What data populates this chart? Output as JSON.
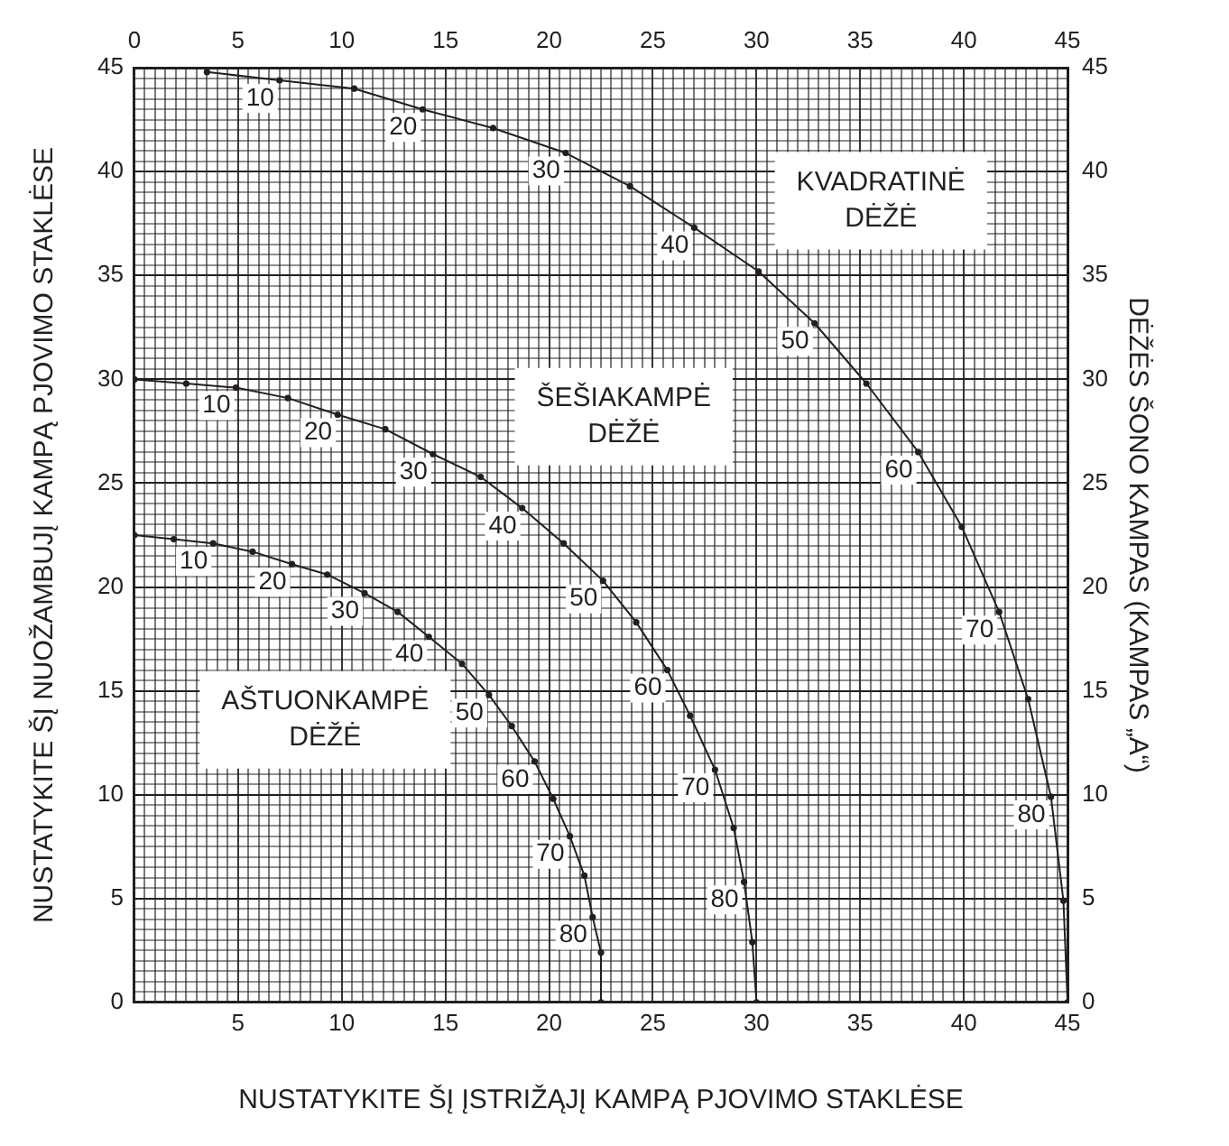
{
  "chart_data": {
    "type": "line",
    "xlabel": "NUSTATYKITE ŠĮ ĮSTRIŽĄJĮ KAMPĄ PJOVIMO STAKLĖSE",
    "ylabel": "NUSTATYKITE ŠĮ NUOŽAMBUJĮ KAMPĄ PJOVIMO STAKLĖSE",
    "y2label": "DĖŽĖS ŠONO KAMPAS (KAMPAS „A“)",
    "series": [
      {
        "name": "KVADRATINĖ DĖŽĖ",
        "color": "#231f20",
        "x": [
          3.5,
          7.0,
          10.6,
          13.9,
          17.3,
          20.8,
          23.9,
          27.0,
          30.1,
          32.8,
          35.3,
          37.8,
          39.9,
          41.7,
          43.1,
          44.2,
          44.8,
          45
        ],
        "values": [
          44.8,
          44.4,
          44.0,
          43.0,
          42.1,
          40.9,
          39.3,
          37.3,
          35.2,
          32.7,
          29.8,
          26.5,
          22.9,
          18.8,
          14.6,
          9.9,
          4.9,
          0
        ]
      },
      {
        "name": "ŠEŠIAKAMPĖ DĖŽĖ",
        "color": "#231f20",
        "x": [
          0,
          2.5,
          4.9,
          7.4,
          9.8,
          12.1,
          14.4,
          16.7,
          18.7,
          20.7,
          22.6,
          24.2,
          25.7,
          26.8,
          28.0,
          28.9,
          29.4,
          29.8,
          30
        ],
        "values": [
          30,
          29.8,
          29.6,
          29.1,
          28.3,
          27.6,
          26.4,
          25.3,
          23.8,
          22.1,
          20.3,
          18.3,
          16.0,
          13.8,
          11.2,
          8.4,
          5.8,
          2.9,
          0
        ]
      },
      {
        "name": "AŠTUONKAMPĖ DĖŽĖ",
        "color": "#231f20",
        "x": [
          0,
          1.9,
          3.8,
          5.7,
          7.6,
          9.3,
          11.1,
          12.7,
          14.2,
          15.8,
          17.1,
          18.2,
          19.3,
          20.2,
          21.0,
          21.7,
          22.1,
          22.5,
          22.5
        ],
        "values": [
          22.5,
          22.3,
          22.1,
          21.7,
          21.1,
          20.6,
          19.7,
          18.8,
          17.6,
          16.3,
          14.8,
          13.3,
          11.6,
          9.8,
          8.0,
          6.1,
          4.1,
          2.4,
          0
        ]
      }
    ],
    "annotations": [
      {
        "text": "10",
        "x": 7.0,
        "y": 44.4
      },
      {
        "text": "20",
        "x": 13.9,
        "y": 43.0
      },
      {
        "text": "30",
        "x": 20.8,
        "y": 40.9
      },
      {
        "text": "40",
        "x": 27.0,
        "y": 37.3
      },
      {
        "text": "50",
        "x": 32.8,
        "y": 32.7
      },
      {
        "text": "60",
        "x": 37.8,
        "y": 26.5
      },
      {
        "text": "70",
        "x": 41.7,
        "y": 18.8
      },
      {
        "text": "80",
        "x": 44.2,
        "y": 9.9
      },
      {
        "text": "10",
        "x": 4.9,
        "y": 29.6
      },
      {
        "text": "20",
        "x": 9.8,
        "y": 28.3
      },
      {
        "text": "30",
        "x": 14.4,
        "y": 26.4
      },
      {
        "text": "40",
        "x": 18.7,
        "y": 23.8
      },
      {
        "text": "50",
        "x": 22.6,
        "y": 20.3
      },
      {
        "text": "60",
        "x": 25.7,
        "y": 16.0
      },
      {
        "text": "70",
        "x": 28.0,
        "y": 11.2
      },
      {
        "text": "80",
        "x": 29.4,
        "y": 5.8
      },
      {
        "text": "10",
        "x": 3.8,
        "y": 22.1
      },
      {
        "text": "20",
        "x": 7.6,
        "y": 21.1
      },
      {
        "text": "30",
        "x": 11.1,
        "y": 19.7
      },
      {
        "text": "40",
        "x": 14.2,
        "y": 17.6
      },
      {
        "text": "50",
        "x": 17.1,
        "y": 14.8
      },
      {
        "text": "60",
        "x": 19.3,
        "y": 11.6
      },
      {
        "text": "70",
        "x": 21.0,
        "y": 8.0
      },
      {
        "text": "80",
        "x": 22.1,
        "y": 4.1
      }
    ],
    "marker": "circle",
    "line_style": "solid",
    "grid": true,
    "legend": false,
    "xlim": [
      0,
      45
    ],
    "ylim": [
      0,
      45
    ],
    "x2lim": [
      0,
      45
    ],
    "y2lim": [
      0,
      45
    ],
    "x2ticks": [
      0,
      5,
      10,
      15,
      20,
      25,
      30,
      35,
      40,
      45
    ],
    "y2ticks": [
      0,
      5,
      10,
      15,
      20,
      25,
      30,
      35,
      40,
      45
    ],
    "xticks": [
      {
        "value": 0,
        "label": null
      },
      {
        "value": 0.5,
        "label": null
      },
      {
        "value": 1,
        "label": null
      },
      {
        "value": 1.5,
        "label": null
      },
      {
        "value": 2,
        "label": null
      },
      {
        "value": 2.5,
        "label": null
      },
      {
        "value": 3,
        "label": null
      },
      {
        "value": 3.5,
        "label": null
      },
      {
        "value": 4,
        "label": null
      },
      {
        "value": 4.5,
        "label": null
      },
      5,
      {
        "value": 5.5,
        "label": null
      },
      {
        "value": 6,
        "label": null
      },
      {
        "value": 6.5,
        "label": null
      },
      {
        "value": 7,
        "label": null
      },
      {
        "value": 7.5,
        "label": null
      },
      {
        "value": 8,
        "label": null
      },
      {
        "value": 8.5,
        "label": null
      },
      {
        "value": 9,
        "label": null
      },
      {
        "value": 9.5,
        "label": null
      },
      10,
      {
        "value": 10.5,
        "label": null
      },
      {
        "value": 11,
        "label": null
      },
      {
        "value": 11.5,
        "label": null
      },
      {
        "value": 12,
        "label": null
      },
      {
        "value": 12.5,
        "label": null
      },
      {
        "value": 13,
        "label": null
      },
      {
        "value": 13.5,
        "label": null
      },
      {
        "value": 14,
        "label": null
      },
      {
        "value": 14.5,
        "label": null
      },
      15,
      {
        "value": 15.5,
        "label": null
      },
      {
        "value": 16,
        "label": null
      },
      {
        "value": 16.5,
        "label": null
      },
      {
        "value": 17,
        "label": null
      },
      {
        "value": 17.5,
        "label": null
      },
      {
        "value": 18,
        "label": null
      },
      {
        "value": 18.5,
        "label": null
      },
      {
        "value": 19,
        "label": null
      },
      {
        "value": 19.5,
        "label": null
      },
      20,
      {
        "value": 20.5,
        "label": null
      },
      {
        "value": 21,
        "label": null
      },
      {
        "value": 21.5,
        "label": null
      },
      {
        "value": 22,
        "label": null
      },
      {
        "value": 22.5,
        "label": null
      },
      {
        "value": 23,
        "label": null
      },
      {
        "value": 23.5,
        "label": null
      },
      {
        "value": 24,
        "label": null
      },
      {
        "value": 24.5,
        "label": null
      },
      25,
      {
        "value": 25.5,
        "label": null
      },
      {
        "value": 26,
        "label": null
      },
      {
        "value": 26.5,
        "label": null
      },
      {
        "value": 27,
        "label": null
      },
      {
        "value": 27.5,
        "label": null
      },
      {
        "value": 28,
        "label": null
      },
      {
        "value": 28.5,
        "label": null
      },
      {
        "value": 29,
        "label": null
      },
      {
        "value": 29.5,
        "label": null
      },
      30,
      {
        "value": 30.5,
        "label": null
      },
      {
        "value": 31,
        "label": null
      },
      {
        "value": 31.5,
        "label": null
      },
      {
        "value": 32,
        "label": null
      },
      {
        "value": 32.5,
        "label": null
      },
      {
        "value": 33,
        "label": null
      },
      {
        "value": 33.5,
        "label": null
      },
      {
        "value": 34,
        "label": null
      },
      {
        "value": 34.5,
        "label": null
      },
      35,
      {
        "value": 35.5,
        "label": null
      },
      {
        "value": 36,
        "label": null
      },
      {
        "value": 36.5,
        "label": null
      },
      {
        "value": 37,
        "label": null
      },
      {
        "value": 37.5,
        "label": null
      },
      {
        "value": 38,
        "label": null
      },
      {
        "value": 38.5,
        "label": null
      },
      {
        "value": 39,
        "label": null
      },
      {
        "value": 39.5,
        "label": null
      },
      40,
      {
        "value": 40.5,
        "label": null
      },
      {
        "value": 41,
        "label": null
      },
      {
        "value": 41.5,
        "label": null
      },
      {
        "value": 42,
        "label": null
      },
      {
        "value": 42.5,
        "label": null
      },
      {
        "value": 43,
        "label": null
      },
      {
        "value": 43.5,
        "label": null
      },
      {
        "value": 44,
        "label": null
      },
      {
        "value": 44.5,
        "label": null
      },
      45
    ],
    "yticks": [
      0,
      {
        "value": 0.5,
        "label": null
      },
      {
        "value": 1,
        "label": null
      },
      {
        "value": 1.5,
        "label": null
      },
      {
        "value": 2,
        "label": null
      },
      {
        "value": 2.5,
        "label": null
      },
      {
        "value": 3,
        "label": null
      },
      {
        "value": 3.5,
        "label": null
      },
      {
        "value": 4,
        "label": null
      },
      {
        "value": 4.5,
        "label": null
      },
      5,
      {
        "value": 5.5,
        "label": null
      },
      {
        "value": 6,
        "label": null
      },
      {
        "value": 6.5,
        "label": null
      },
      {
        "value": 7,
        "label": null
      },
      {
        "value": 7.5,
        "label": null
      },
      {
        "value": 8,
        "label": null
      },
      {
        "value": 8.5,
        "label": null
      },
      {
        "value": 9,
        "label": null
      },
      {
        "value": 9.5,
        "label": null
      },
      10,
      {
        "value": 10.5,
        "label": null
      },
      {
        "value": 11,
        "label": null
      },
      {
        "value": 11.5,
        "label": null
      },
      {
        "value": 12,
        "label": null
      },
      {
        "value": 12.5,
        "label": null
      },
      {
        "value": 13,
        "label": null
      },
      {
        "value": 13.5,
        "label": null
      },
      {
        "value": 14,
        "label": null
      },
      {
        "value": 14.5,
        "label": null
      },
      15,
      {
        "value": 15.5,
        "label": null
      },
      {
        "value": 16,
        "label": null
      },
      {
        "value": 16.5,
        "label": null
      },
      {
        "value": 17,
        "label": null
      },
      {
        "value": 17.5,
        "label": null
      },
      {
        "value": 18,
        "label": null
      },
      {
        "value": 18.5,
        "label": null
      },
      {
        "value": 19,
        "label": null
      },
      {
        "value": 19.5,
        "label": null
      },
      20,
      {
        "value": 20.5,
        "label": null
      },
      {
        "value": 21,
        "label": null
      },
      {
        "value": 21.5,
        "label": null
      },
      {
        "value": 22,
        "label": null
      },
      {
        "value": 22.5,
        "label": null
      },
      {
        "value": 23,
        "label": null
      },
      {
        "value": 23.5,
        "label": null
      },
      {
        "value": 24,
        "label": null
      },
      {
        "value": 24.5,
        "label": null
      },
      25,
      {
        "value": 25.5,
        "label": null
      },
      {
        "value": 26,
        "label": null
      },
      {
        "value": 26.5,
        "label": null
      },
      {
        "value": 27,
        "label": null
      },
      {
        "value": 27.5,
        "label": null
      },
      {
        "value": 28,
        "label": null
      },
      {
        "value": 28.5,
        "label": null
      },
      {
        "value": 29,
        "label": null
      },
      {
        "value": 29.5,
        "label": null
      },
      30,
      {
        "value": 30.5,
        "label": null
      },
      {
        "value": 31,
        "label": null
      },
      {
        "value": 31.5,
        "label": null
      },
      {
        "value": 32,
        "label": null
      },
      {
        "value": 32.5,
        "label": null
      },
      {
        "value": 33,
        "label": null
      },
      {
        "value": 33.5,
        "label": null
      },
      {
        "value": 34,
        "label": null
      },
      {
        "value": 34.5,
        "label": null
      },
      35,
      {
        "value": 35.5,
        "label": null
      },
      {
        "value": 36,
        "label": null
      },
      {
        "value": 36.5,
        "label": null
      },
      {
        "value": 37,
        "label": null
      },
      {
        "value": 37.5,
        "label": null
      },
      {
        "value": 38,
        "label": null
      },
      {
        "value": 38.5,
        "label": null
      },
      {
        "value": 39,
        "label": null
      },
      {
        "value": 39.5,
        "label": null
      },
      40,
      {
        "value": 40.5,
        "label": null
      },
      {
        "value": 41,
        "label": null
      },
      {
        "value": 41.5,
        "label": null
      },
      {
        "value": 42,
        "label": null
      },
      {
        "value": 42.5,
        "label": null
      },
      {
        "value": 43,
        "label": null
      },
      {
        "value": 43.5,
        "label": null
      },
      {
        "value": 44,
        "label": null
      },
      {
        "value": 44.5,
        "label": null
      },
      45
    ]
  }
}
